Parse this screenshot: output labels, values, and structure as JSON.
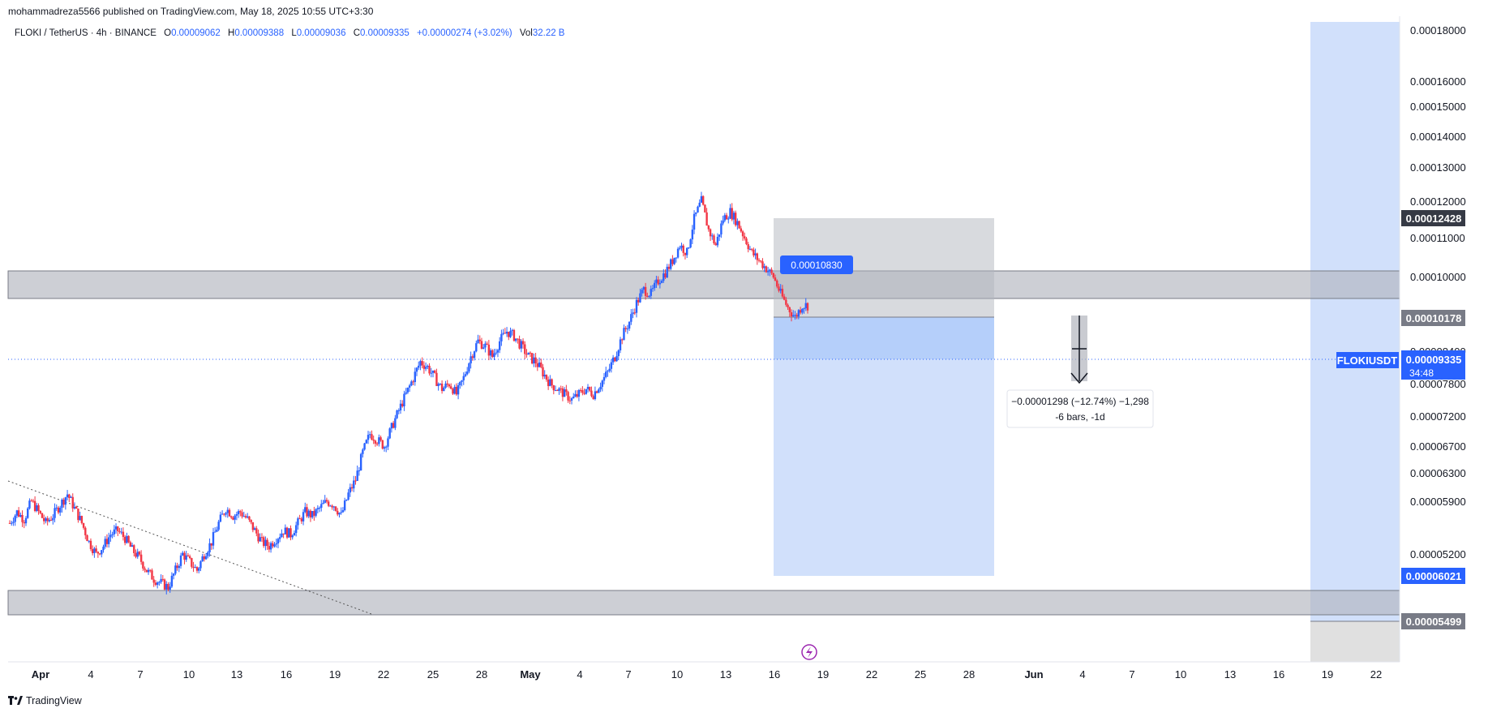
{
  "header": {
    "publisher": "mohammadreza5566 published on TradingView.com, May 18, 2025 10:55 UTC+3:30"
  },
  "legend": {
    "symbol": "FLOKI / TetherUS · 4h · BINANCE",
    "o_label": "O",
    "o": "0.00009062",
    "h_label": "H",
    "h": "0.00009388",
    "l_label": "L",
    "l": "0.00009036",
    "c_label": "C",
    "c": "0.00009335",
    "change": "+0.00000274 (+3.02%)",
    "vol_label": "Vol",
    "vol": "32.22 B"
  },
  "footer": {
    "brand": "TradingView"
  },
  "colors": {
    "up": "#2962ff",
    "down": "#f23645",
    "zone": "#b2b5be",
    "projection": "#aecbfa",
    "projection_light": "#d1e0fb",
    "accent": "#2962ff",
    "label_dark": "#363a45",
    "label_gray": "#787b86"
  },
  "chart_data": {
    "type": "candlestick",
    "symbol_label": "FLOKIUSDT",
    "countdown": "34:48",
    "y_ticks": [
      "0.00018000",
      "0.00016000",
      "0.00015000",
      "0.00014000",
      "0.00013000",
      "0.00012000",
      "0.00011000",
      "0.00010000",
      "0.00008400",
      "0.00007800",
      "0.00007200",
      "0.00006700",
      "0.00006300",
      "0.00005900",
      "0.00005200"
    ],
    "x_ticks": [
      "Apr",
      "4",
      "7",
      "10",
      "13",
      "16",
      "19",
      "22",
      "25",
      "28",
      "May",
      "4",
      "7",
      "10",
      "13",
      "16",
      "19",
      "22",
      "25",
      "28",
      "Jun",
      "4",
      "7",
      "10",
      "13",
      "16",
      "19",
      "22"
    ],
    "price_labels": {
      "upper_zone_top": "0.00012428",
      "entry": "0.00010178",
      "current": "0.00009335",
      "target": "0.00006021",
      "lower_zone": "0.00005499"
    },
    "callout": "0.00010830",
    "measure": {
      "line1": "−0.00001298 (−12.74%) −1,298",
      "line2": "-6 bars, -1d"
    },
    "candle_series": [
      5.6e-05,
      5.75e-05,
      5.65e-05,
      5.9e-05,
      5.75e-05,
      5.6e-05,
      5.7e-05,
      5.85e-05,
      6e-05,
      5.8e-05,
      5.6e-05,
      5.35e-05,
      5.2e-05,
      5.3e-05,
      5.45e-05,
      5.5e-05,
      5.4e-05,
      5.25e-05,
      5.15e-05,
      5e-05,
      4.9e-05,
      4.85e-05,
      4.8e-05,
      5e-05,
      5.2e-05,
      5.1e-05,
      5e-05,
      5.2e-05,
      5.35e-05,
      5.6e-05,
      5.8e-05,
      5.7e-05,
      5.75e-05,
      5.65e-05,
      5.5e-05,
      5.35e-05,
      5.3e-05,
      5.4e-05,
      5.5e-05,
      5.45e-05,
      5.6e-05,
      5.75e-05,
      5.7e-05,
      5.8e-05,
      5.9e-05,
      5.85e-05,
      5.7e-05,
      6e-05,
      6.2e-05,
      6.6e-05,
      6.9e-05,
      6.8e-05,
      6.7e-05,
      7e-05,
      7.3e-05,
      7.6e-05,
      7.9e-05,
      8.2e-05,
      8.1e-05,
      7.9e-05,
      7.7e-05,
      7.8e-05,
      7.6e-05,
      7.9e-05,
      8.3e-05,
      8.6e-05,
      8.5e-05,
      8.3e-05,
      8.6e-05,
      8.8e-05,
      8.7e-05,
      8.5e-05,
      8.3e-05,
      8.2e-05,
      8e-05,
      7.8e-05,
      7.7e-05,
      7.6e-05,
      7.5e-05,
      7.6e-05,
      7.7e-05,
      7.6e-05,
      7.8e-05,
      8e-05,
      8.3e-05,
      8.7e-05,
      9e-05,
      9.4e-05,
      9.7e-05,
      9.6e-05,
      9.9e-05,
      0.000101,
      0.000104,
      0.000108,
      0.000106,
      0.000115,
      0.00012,
      0.000112,
      0.000108,
      0.000115,
      0.000117,
      0.000114,
      0.00011,
      0.000106,
      0.000104,
      0.000102,
      0.0001,
      9.6e-05,
      9.3e-05,
      9.1e-05,
      9.35e-05
    ]
  }
}
